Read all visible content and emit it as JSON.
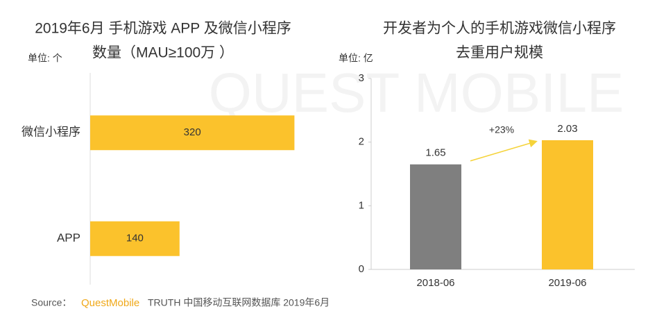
{
  "chart_data": [
    {
      "type": "bar",
      "orientation": "horizontal",
      "title": [
        "2019年6月 手机游戏 APP 及微信小程序",
        "数量（MAU≥100万 ）"
      ],
      "unit": "单位: 个",
      "categories": [
        "微信小程序",
        "APP"
      ],
      "values": [
        320,
        140
      ],
      "color": "#fbc22c",
      "xlim": [
        0,
        350
      ]
    },
    {
      "type": "bar",
      "orientation": "vertical",
      "title": [
        "开发者为个人的手机游戏微信小程序",
        "去重用户规模"
      ],
      "unit": "单位: 亿",
      "categories": [
        "2018-06",
        "2019-06"
      ],
      "values": [
        1.65,
        2.03
      ],
      "colors": [
        "#7f7f7f",
        "#fbc22c"
      ],
      "ylim": [
        0,
        3
      ],
      "yticks": [
        0,
        1,
        2,
        3
      ],
      "annotation": "+23%"
    }
  ],
  "source": {
    "label": "Source：",
    "brand": "QuestMobile",
    "text": "TRUTH 中国移动互联网数据库 2019年6月"
  },
  "watermark": "QUEST MOBILE"
}
